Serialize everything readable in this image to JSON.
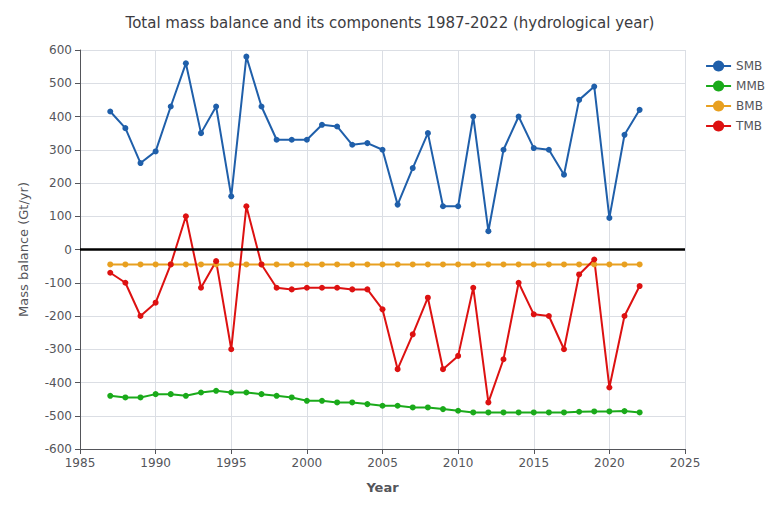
{
  "chart_data": {
    "type": "line",
    "title": "Total mass balance and its components 1987-2022 (hydrological year)",
    "xlabel": "Year",
    "ylabel": "Mass balance (Gt/yr)",
    "x": [
      1987,
      1988,
      1989,
      1990,
      1991,
      1992,
      1993,
      1994,
      1995,
      1996,
      1997,
      1998,
      1999,
      2000,
      2001,
      2002,
      2003,
      2004,
      2005,
      2006,
      2007,
      2008,
      2009,
      2010,
      2011,
      2012,
      2013,
      2014,
      2015,
      2016,
      2017,
      2018,
      2019,
      2020,
      2021,
      2022
    ],
    "series": [
      {
        "name": "SMB",
        "color": "#1f5faa",
        "marker": "circle",
        "values": [
          415,
          365,
          260,
          295,
          430,
          560,
          350,
          430,
          160,
          580,
          430,
          330,
          330,
          330,
          375,
          370,
          315,
          320,
          300,
          135,
          245,
          350,
          130,
          130,
          400,
          55,
          300,
          400,
          305,
          300,
          225,
          450,
          490,
          95,
          345,
          420
        ]
      },
      {
        "name": "MMB",
        "color": "#1aaa1a",
        "marker": "circle",
        "values": [
          -440,
          -445,
          -445,
          -435,
          -435,
          -440,
          -430,
          -425,
          -430,
          -430,
          -435,
          -440,
          -445,
          -455,
          -455,
          -460,
          -460,
          -465,
          -470,
          -470,
          -475,
          -475,
          -480,
          -485,
          -490,
          -490,
          -490,
          -490,
          -490,
          -490,
          -490,
          -488,
          -487,
          -487,
          -486,
          -490
        ]
      },
      {
        "name": "BMB",
        "color": "#e8a020",
        "marker": "circle",
        "values": [
          -45,
          -45,
          -45,
          -45,
          -45,
          -45,
          -45,
          -45,
          -45,
          -45,
          -45,
          -45,
          -45,
          -45,
          -45,
          -45,
          -45,
          -45,
          -45,
          -45,
          -45,
          -45,
          -45,
          -45,
          -45,
          -45,
          -45,
          -45,
          -45,
          -45,
          -45,
          -45,
          -45,
          -45,
          -45,
          -45
        ]
      },
      {
        "name": "TMB",
        "color": "#dd1111",
        "marker": "circle",
        "values": [
          -70,
          -100,
          -200,
          -160,
          -45,
          100,
          -115,
          -35,
          -300,
          130,
          -45,
          -115,
          -120,
          -115,
          -115,
          -115,
          -120,
          -120,
          -180,
          -360,
          -255,
          -145,
          -360,
          -320,
          -115,
          -460,
          -330,
          -100,
          -195,
          -200,
          -300,
          -75,
          -30,
          -415,
          -200,
          -110
        ]
      }
    ],
    "xlim": [
      1985,
      2025
    ],
    "xticks": [
      1985,
      1990,
      1995,
      2000,
      2005,
      2010,
      2015,
      2020,
      2025
    ],
    "ylim": [
      -600,
      600
    ],
    "yticks": [
      -600,
      -500,
      -400,
      -300,
      -200,
      -100,
      0,
      100,
      200,
      300,
      400,
      500,
      600
    ],
    "grid": true,
    "legend": "right"
  }
}
